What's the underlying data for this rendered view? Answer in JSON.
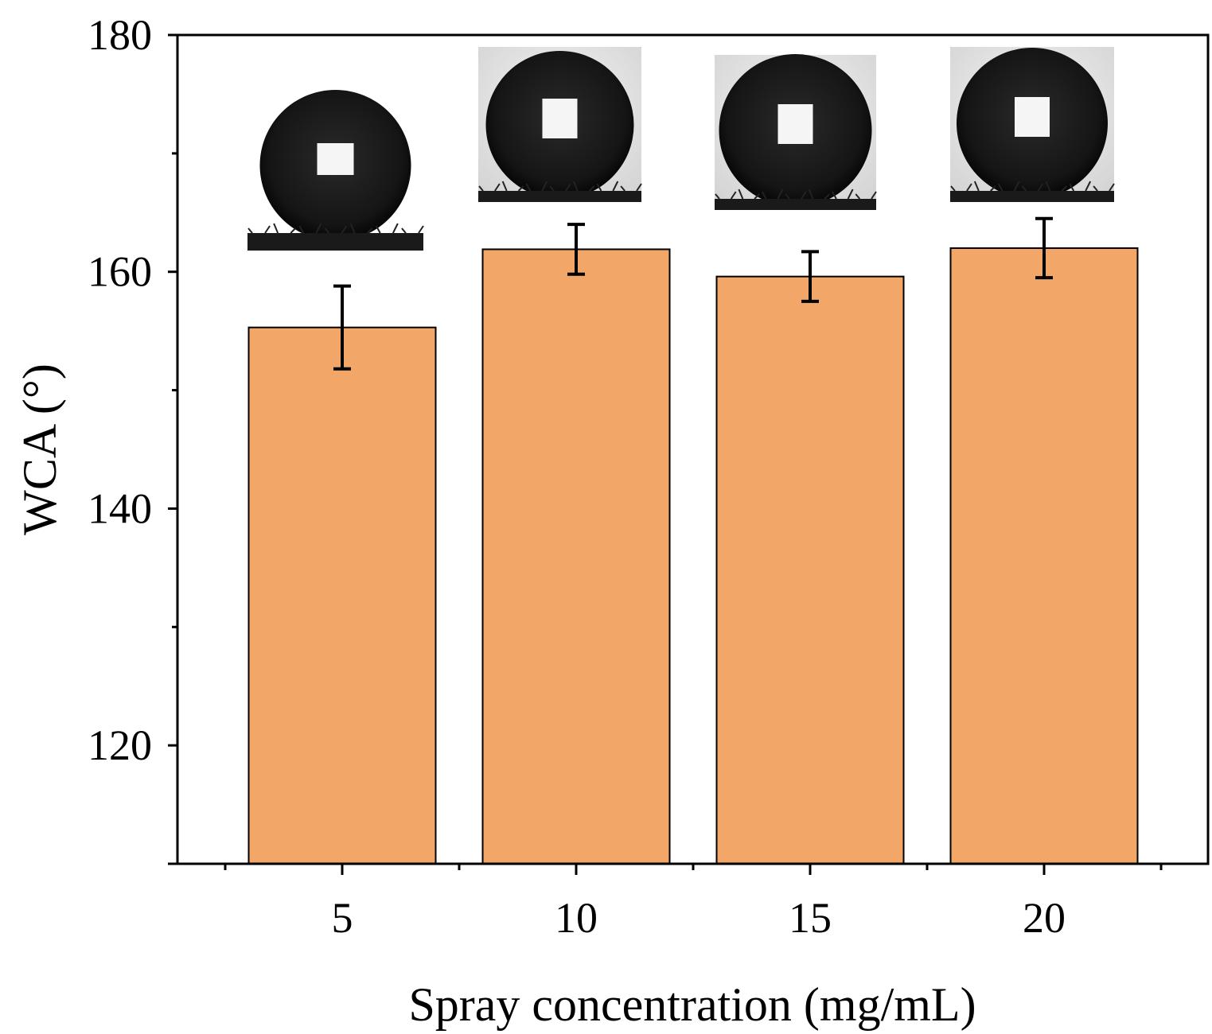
{
  "chart_data": {
    "type": "bar",
    "title": "",
    "xlabel": "Spray concentration (mg/mL)",
    "ylabel": "WCA (°)",
    "categories": [
      "5",
      "10",
      "15",
      "20"
    ],
    "values": [
      155.3,
      161.9,
      159.6,
      162.0
    ],
    "errors": [
      3.5,
      2.1,
      2.1,
      2.5
    ],
    "ylim": [
      110,
      180
    ],
    "yticks": [
      120,
      140,
      160,
      180
    ],
    "yminor_ticks": [
      130,
      150,
      170
    ],
    "grid": false,
    "legend": "none",
    "insets": "water droplet contact-angle photo above each bar",
    "colors": {
      "bar_fill": "#F2A668",
      "bar_stroke": "#000000",
      "error_bar": "#000000"
    }
  }
}
